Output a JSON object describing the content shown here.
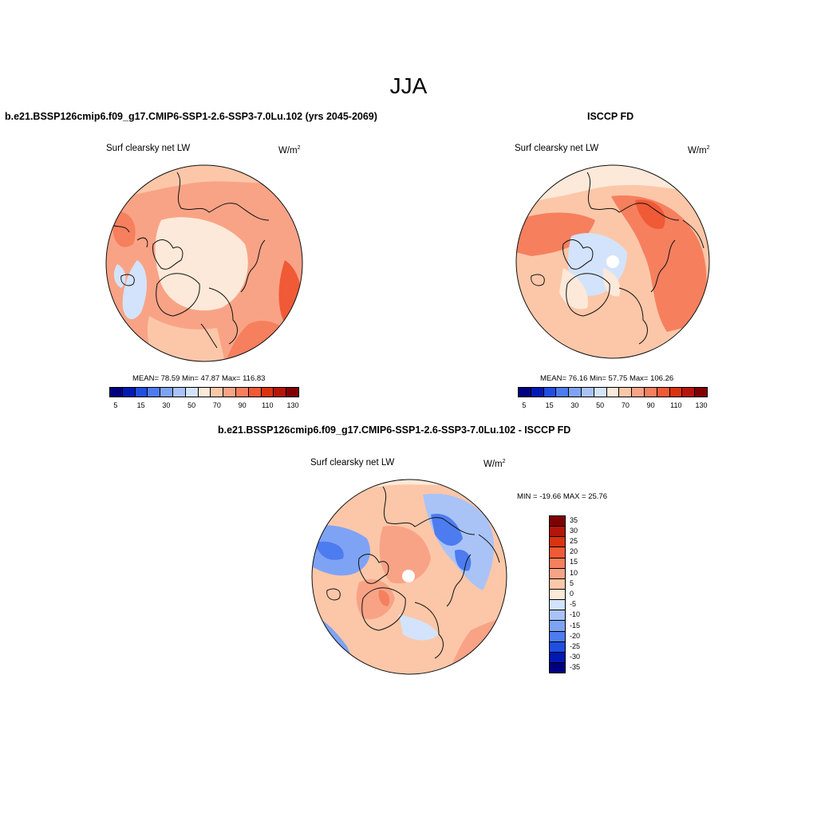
{
  "page_title": "JJA",
  "panels": [
    {
      "title": "b.e21.BSSP126cmip6.f09_g17.CMIP6-SSP1-2.6-SSP3-7.0Lu.102 (yrs 2045-2069)",
      "variable": "Surf clearsky net LW",
      "units_base": "W/m",
      "units_exp": "2",
      "stats": "MEAN=  78.59  Min=  47.87  Max= 116.83"
    },
    {
      "title": "ISCCP FD",
      "variable": "Surf clearsky net LW",
      "units_base": "W/m",
      "units_exp": "2",
      "stats": "MEAN=  76.16  Min=  57.75  Max= 106.26"
    },
    {
      "title": "b.e21.BSSP126cmip6.f09_g17.CMIP6-SSP1-2.6-SSP3-7.0Lu.102 - ISCCP FD",
      "variable": "Surf clearsky net LW",
      "units_base": "W/m",
      "units_exp": "2",
      "stats": "MIN = -19.66 MAX =  25.76"
    }
  ],
  "colorbar_abs": {
    "colors": [
      "#00007f",
      "#0019b3",
      "#1f4ee0",
      "#4d7cf0",
      "#7ea3f5",
      "#a9c3f7",
      "#d3e3fb",
      "#fde9d9",
      "#fcc7a8",
      "#f9a386",
      "#f67f5e",
      "#f05a36",
      "#da3310",
      "#b5150a",
      "#800000"
    ],
    "ticks": [
      "5",
      "15",
      "30",
      "50",
      "70",
      "90",
      "110",
      "130"
    ]
  },
  "colorbar_diff": {
    "colors": [
      "#800000",
      "#b5150a",
      "#da3310",
      "#f05a36",
      "#f67f5e",
      "#f9a386",
      "#fcc7a8",
      "#fde9d9",
      "#d3e3fb",
      "#a9c3f7",
      "#7ea3f5",
      "#4d7cf0",
      "#1f4ee0",
      "#0019b3",
      "#00007f"
    ],
    "ticks": [
      "35",
      "30",
      "25",
      "20",
      "15",
      "10",
      "5",
      "0",
      "-5",
      "-10",
      "-15",
      "-20",
      "-25",
      "-30",
      "-35"
    ]
  }
}
